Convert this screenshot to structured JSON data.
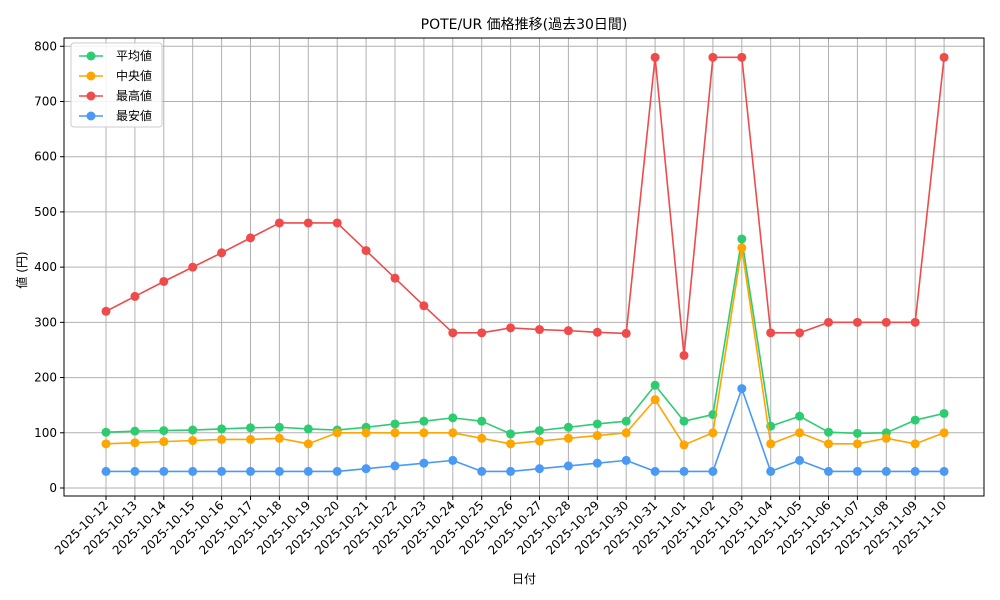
{
  "chart_data": {
    "type": "line",
    "title": "POTE/UR 価格推移(過去30日間)",
    "xlabel": "日付",
    "ylabel": "値 (円)",
    "ylim": [
      0,
      800
    ],
    "yticks": [
      0,
      100,
      200,
      300,
      400,
      500,
      600,
      700,
      800
    ],
    "grid": true,
    "legend_position": "top-left",
    "categories": [
      "2025-10-12",
      "2025-10-13",
      "2025-10-14",
      "2025-10-15",
      "2025-10-16",
      "2025-10-17",
      "2025-10-18",
      "2025-10-19",
      "2025-10-20",
      "2025-10-21",
      "2025-10-22",
      "2025-10-23",
      "2025-10-24",
      "2025-10-25",
      "2025-10-26",
      "2025-10-27",
      "2025-10-28",
      "2025-10-29",
      "2025-10-30",
      "2025-10-31",
      "2025-11-01",
      "2025-11-02",
      "2025-11-03",
      "2025-11-04",
      "2025-11-05",
      "2025-11-06",
      "2025-11-07",
      "2025-11-08",
      "2025-11-09",
      "2025-11-10"
    ],
    "series": [
      {
        "name": "平均値",
        "color": "#2ecc71",
        "values": [
          101,
          103,
          104,
          105,
          107,
          109,
          110,
          107,
          105,
          110,
          116,
          121,
          127,
          121,
          98,
          104,
          110,
          116,
          121,
          186,
          121,
          133,
          451,
          112,
          130,
          101,
          99,
          100,
          123,
          135
        ]
      },
      {
        "name": "中央値",
        "color": "#ffa500",
        "values": [
          80,
          82,
          84,
          86,
          88,
          88,
          90,
          80,
          100,
          100,
          100,
          100,
          100,
          90,
          80,
          85,
          90,
          95,
          100,
          160,
          78,
          100,
          435,
          80,
          100,
          80,
          80,
          90,
          80,
          100
        ]
      },
      {
        "name": "最高値",
        "color": "#ef4b4b",
        "values": [
          320,
          347,
          374,
          400,
          426,
          453,
          480,
          480,
          480,
          430,
          380,
          330,
          281,
          281,
          290,
          287,
          285,
          282,
          280,
          780,
          240,
          780,
          780,
          281,
          281,
          300,
          300,
          300,
          300,
          780
        ]
      },
      {
        "name": "最安値",
        "color": "#4a9af5",
        "values": [
          30,
          30,
          30,
          30,
          30,
          30,
          30,
          30,
          30,
          35,
          40,
          45,
          50,
          30,
          30,
          35,
          40,
          45,
          50,
          30,
          30,
          30,
          180,
          30,
          50,
          30,
          30,
          30,
          30,
          30
        ]
      }
    ]
  }
}
